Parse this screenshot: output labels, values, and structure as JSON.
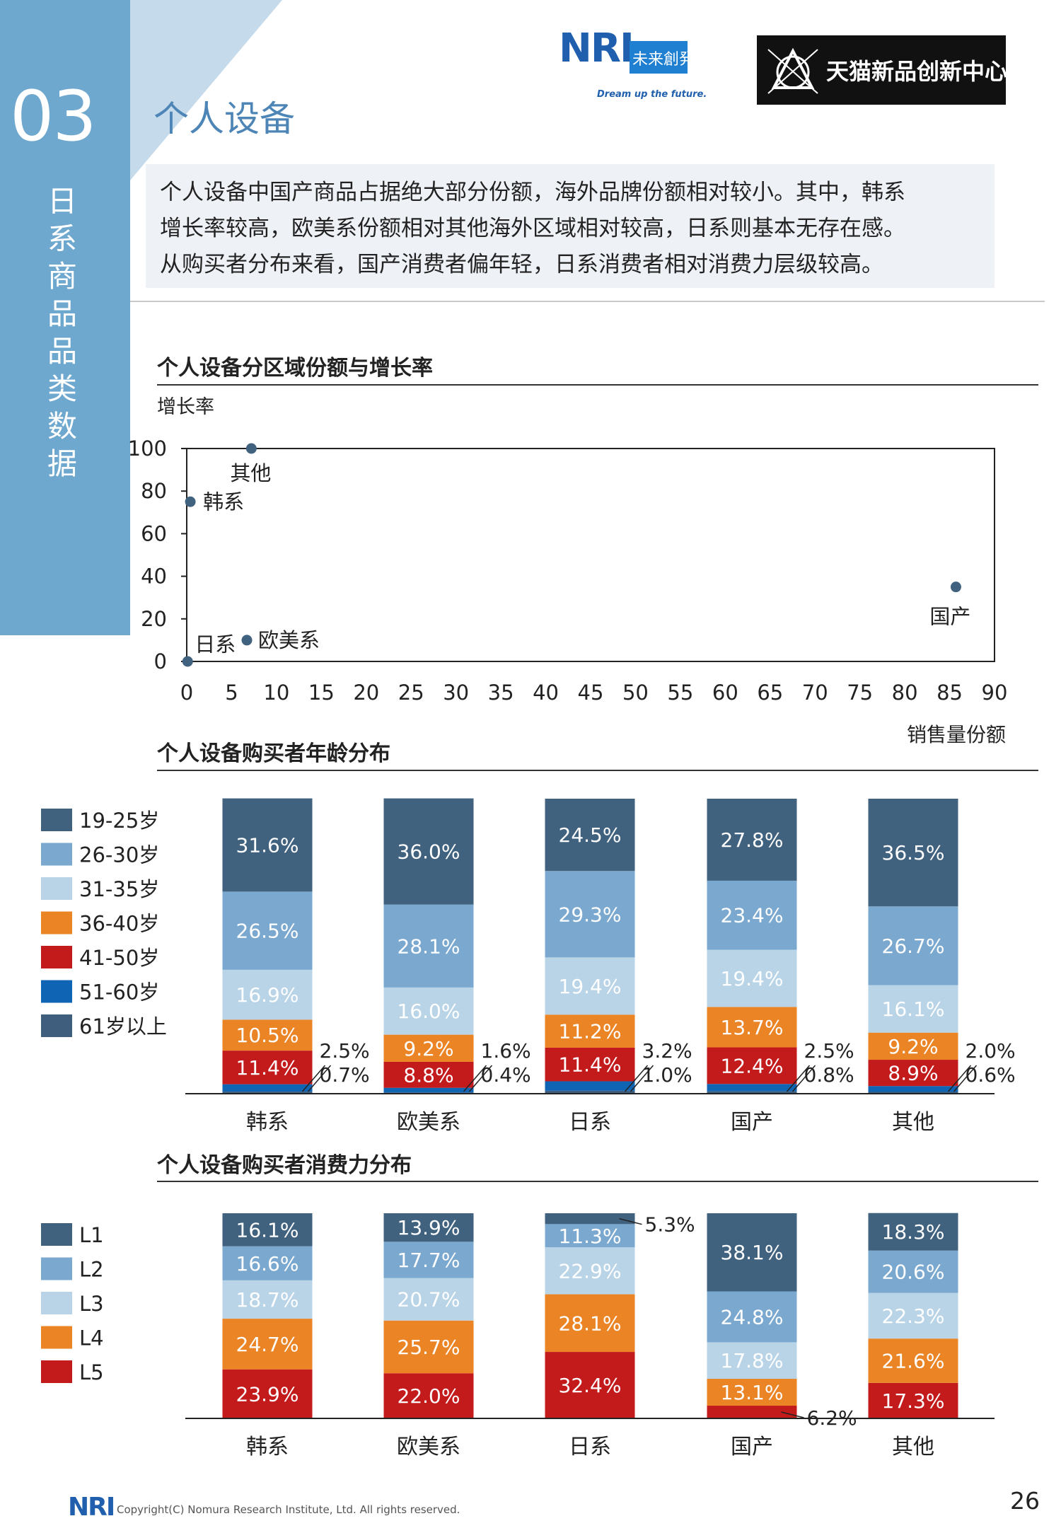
{
  "sidebar": {
    "number": "03",
    "vertical_title": "日系商品品类数据"
  },
  "page_title": "个人设备",
  "logos": {
    "nri": "NRI",
    "nri_sub": "未来創発",
    "nri_tagline": "Dream up the future.",
    "tmall": "天猫新品创新中心"
  },
  "summary": {
    "lines": [
      "个人设备中国产商品占据绝大部分份额，海外品牌份额相对较小。其中，韩系",
      "增长率较高，欧美系份额相对其他海外区域相对较高，日系则基本无存在感。",
      "从购买者分布来看，国产消费者偏年轻，日系消费者相对消费力层级较高。"
    ]
  },
  "colors": {
    "c1": "#41627f",
    "c2": "#7aa8cf",
    "c3": "#b9d4e7",
    "c4": "#ea8425",
    "c5": "#c31a1c",
    "c6": "#1064b4",
    "c7": "#3f5d7c",
    "marker": "#41627f",
    "title": "#4d86b6",
    "sidebar": "#6fa8cf"
  },
  "chart_data": [
    {
      "type": "scatter",
      "title": "个人设备分区域份额与增长率",
      "xlabel": "销售量份额",
      "ylabel": "增长率",
      "xlim": [
        0,
        90
      ],
      "ylim": [
        0,
        100
      ],
      "xticks": [
        0,
        5,
        10,
        15,
        20,
        25,
        30,
        35,
        40,
        45,
        50,
        55,
        60,
        65,
        70,
        75,
        80,
        85,
        90
      ],
      "yticks": [
        0,
        20,
        40,
        60,
        80,
        100
      ],
      "points": [
        {
          "label": "其他",
          "x": 7.2,
          "y": 100
        },
        {
          "label": "韩系",
          "x": 0.4,
          "y": 75
        },
        {
          "label": "国产",
          "x": 85.7,
          "y": 35
        },
        {
          "label": "欧美系",
          "x": 6.7,
          "y": 10
        },
        {
          "label": "日系",
          "x": 0.1,
          "y": 0
        }
      ]
    },
    {
      "type": "bar",
      "stacked": true,
      "title": "个人设备购买者年龄分布",
      "categories": [
        "韩系",
        "欧美系",
        "日系",
        "国产",
        "其他"
      ],
      "legend_position": "left",
      "series": [
        {
          "name": "61岁以上",
          "values": [
            0.7,
            0.4,
            1.0,
            0.8,
            0.6
          ]
        },
        {
          "name": "51-60岁",
          "values": [
            2.5,
            1.6,
            3.2,
            2.5,
            2.0
          ]
        },
        {
          "name": "41-50岁",
          "values": [
            11.4,
            8.8,
            11.4,
            12.4,
            8.9
          ]
        },
        {
          "name": "36-40岁",
          "values": [
            10.5,
            9.2,
            11.2,
            13.7,
            9.2
          ]
        },
        {
          "name": "31-35岁",
          "values": [
            16.9,
            16.0,
            19.4,
            19.4,
            16.1
          ]
        },
        {
          "name": "26-30岁",
          "values": [
            26.5,
            28.1,
            29.3,
            23.4,
            26.7
          ]
        },
        {
          "name": "19-25岁",
          "values": [
            31.6,
            36.0,
            24.5,
            27.8,
            36.5
          ]
        }
      ]
    },
    {
      "type": "bar",
      "stacked": true,
      "title": "个人设备购买者消费力分布",
      "categories": [
        "韩系",
        "欧美系",
        "日系",
        "国产",
        "其他"
      ],
      "legend_position": "left",
      "series": [
        {
          "name": "L5",
          "values": [
            23.9,
            22.0,
            32.4,
            6.2,
            17.3
          ]
        },
        {
          "name": "L4",
          "values": [
            24.7,
            25.7,
            28.1,
            13.1,
            21.6
          ]
        },
        {
          "name": "L3",
          "values": [
            18.7,
            20.7,
            22.9,
            17.8,
            22.3
          ]
        },
        {
          "name": "L2",
          "values": [
            16.6,
            17.7,
            11.3,
            24.8,
            20.6
          ]
        },
        {
          "name": "L1",
          "values": [
            16.1,
            13.9,
            5.3,
            38.1,
            18.3
          ]
        }
      ]
    }
  ],
  "footer": {
    "copyright": "Copyright(C) Nomura Research Institute, Ltd. All rights reserved.",
    "page_number": "26"
  }
}
